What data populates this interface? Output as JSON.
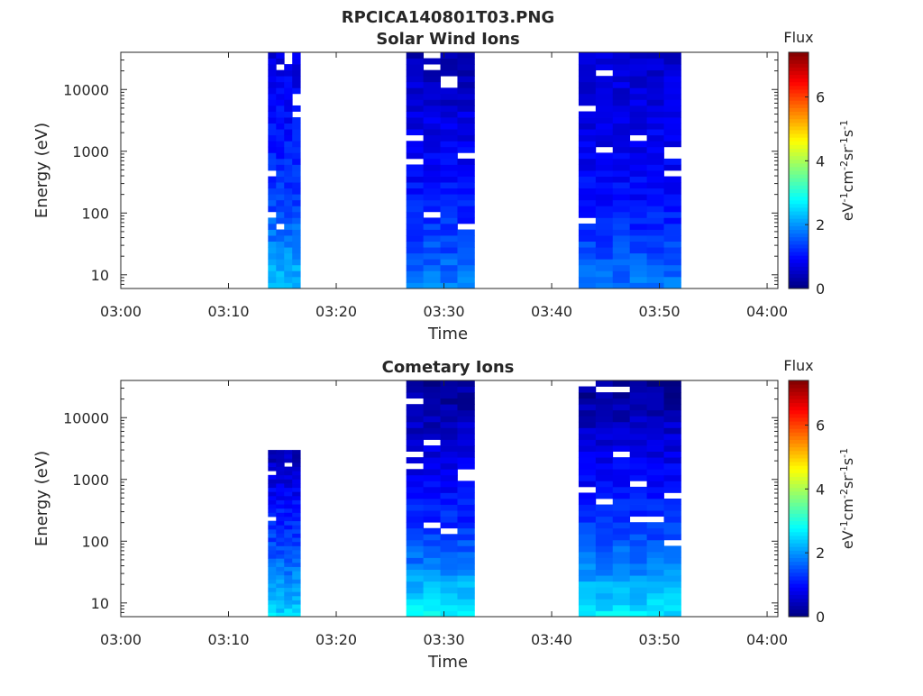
{
  "figure": {
    "filename": "RPCICA140801T03.PNG"
  },
  "chart_data": [
    {
      "type": "heatmap",
      "title": "Solar Wind Ions",
      "xlabel": "Time",
      "ylabel": "Energy (eV)",
      "x_ticks": [
        "03:00",
        "03:10",
        "03:20",
        "03:30",
        "03:40",
        "03:50",
        "04:00"
      ],
      "y_ticks": [
        "10",
        "100",
        "1000",
        "10000"
      ],
      "y_scale": "log",
      "xlim": [
        "03:00",
        "04:01"
      ],
      "ylim": [
        6,
        40000
      ],
      "colorbar": {
        "title": "Flux",
        "label": "eV-1cm-2sr-1s-1",
        "label_parts": [
          [
            "eV",
            ""
          ],
          [
            "-1",
            "sup"
          ],
          [
            "cm",
            ""
          ],
          [
            "-2",
            "sup"
          ],
          [
            "sr",
            ""
          ],
          [
            "-1",
            "sup"
          ],
          [
            "s",
            ""
          ],
          [
            "-1",
            "sup"
          ]
        ],
        "ticks": [
          "0",
          "2",
          "4",
          "6"
        ],
        "range": [
          0,
          7.4
        ],
        "colormap": "jet"
      },
      "blocks": [
        {
          "start": "03:13:40",
          "end": "03:16:40",
          "columns": 4,
          "min_eV": 6,
          "max_eV": 40000,
          "flux_high": 0.7,
          "flux_mid": 1.4,
          "flux_low": 2.3
        },
        {
          "start": "03:26:30",
          "end": "03:32:50",
          "columns": 4,
          "min_eV": 6,
          "max_eV": 40000,
          "flux_high": 0.4,
          "flux_mid": 1.1,
          "flux_low": 1.8
        },
        {
          "start": "03:42:30",
          "end": "03:52:00",
          "columns": 6,
          "min_eV": 6,
          "max_eV": 40000,
          "flux_high": 0.6,
          "flux_mid": 1.0,
          "flux_low": 1.8
        }
      ]
    },
    {
      "type": "heatmap",
      "title": "Cometary Ions",
      "xlabel": "Time",
      "ylabel": "Energy (eV)",
      "x_ticks": [
        "03:00",
        "03:10",
        "03:20",
        "03:30",
        "03:40",
        "03:50",
        "04:00"
      ],
      "y_ticks": [
        "10",
        "100",
        "1000",
        "10000"
      ],
      "y_scale": "log",
      "xlim": [
        "03:00",
        "04:01"
      ],
      "ylim": [
        6,
        40000
      ],
      "colorbar": {
        "title": "Flux",
        "label": "eV-1cm-2sr-1s-1",
        "label_parts": [
          [
            "eV",
            ""
          ],
          [
            "-1",
            "sup"
          ],
          [
            "cm",
            ""
          ],
          [
            "-2",
            "sup"
          ],
          [
            "sr",
            ""
          ],
          [
            "-1",
            "sup"
          ],
          [
            "s",
            ""
          ],
          [
            "-1",
            "sup"
          ]
        ],
        "ticks": [
          "0",
          "2",
          "4",
          "6"
        ],
        "range": [
          0,
          7.4
        ],
        "colormap": "jet"
      },
      "blocks": [
        {
          "start": "03:13:40",
          "end": "03:16:40",
          "columns": 4,
          "min_eV": 6,
          "max_eV": 3000,
          "flux_high": 0.4,
          "flux_mid": 1.6,
          "flux_low": 2.5
        },
        {
          "start": "03:26:30",
          "end": "03:32:50",
          "columns": 4,
          "min_eV": 6,
          "max_eV": 40000,
          "flux_high": 0.15,
          "flux_mid": 1.3,
          "flux_low": 2.7
        },
        {
          "start": "03:42:30",
          "end": "03:52:00",
          "columns": 6,
          "min_eV": 6,
          "max_eV": 40000,
          "flux_high": 0.15,
          "flux_mid": 1.4,
          "flux_low": 2.6
        }
      ]
    }
  ]
}
